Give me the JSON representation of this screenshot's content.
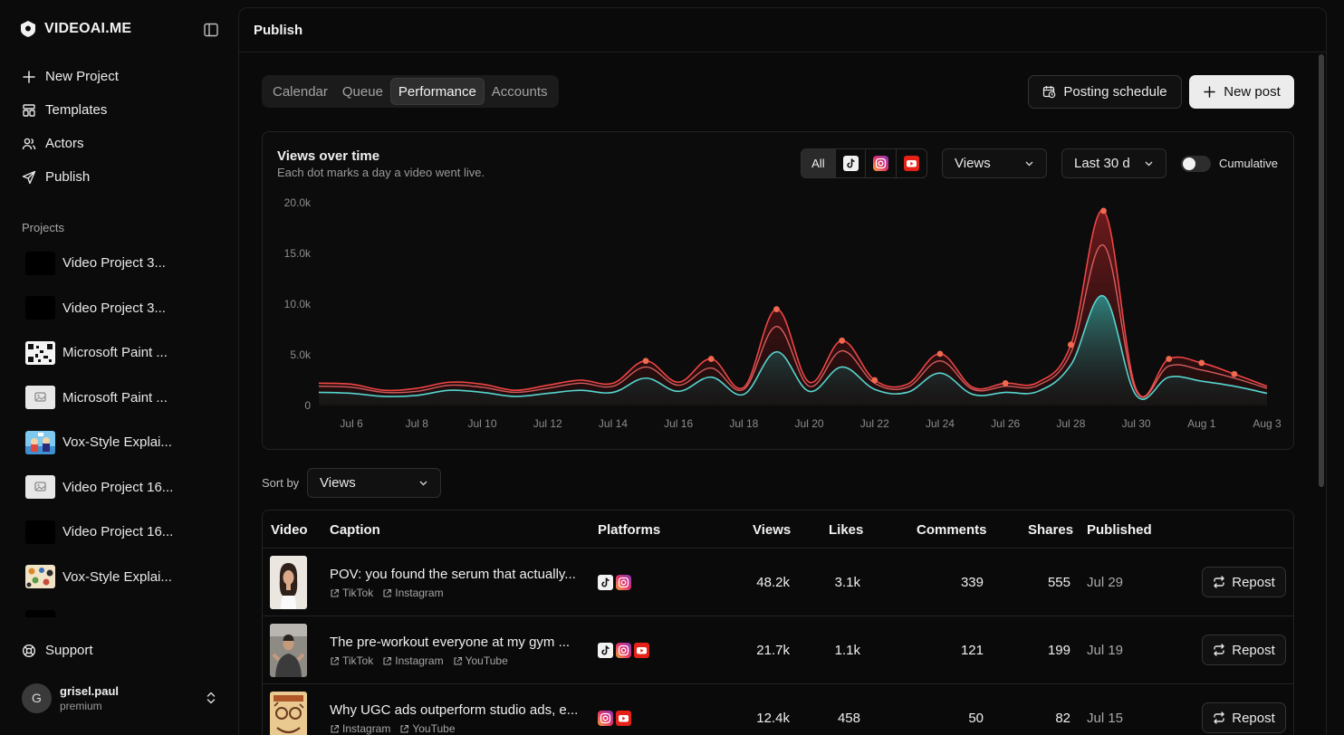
{
  "app": {
    "brand": "VIDEOAI.ME"
  },
  "nav": [
    {
      "label": "New Project",
      "icon": "plus-icon"
    },
    {
      "label": "Templates",
      "icon": "layout-icon"
    },
    {
      "label": "Actors",
      "icon": "users-icon"
    },
    {
      "label": "Publish",
      "icon": "send-icon"
    }
  ],
  "projects_label": "Projects",
  "projects": [
    {
      "label": "Video Project 3...",
      "thumb": "black"
    },
    {
      "label": "Video Project 3...",
      "thumb": "black"
    },
    {
      "label": "Microsoft Paint ...",
      "thumb": "qr"
    },
    {
      "label": "Microsoft Paint ...",
      "thumb": "placeholder"
    },
    {
      "label": "Vox-Style Explai...",
      "thumb": "cartoon"
    },
    {
      "label": "Video Project 16...",
      "thumb": "placeholder"
    },
    {
      "label": "Video Project 16...",
      "thumb": "black"
    },
    {
      "label": "Vox-Style Explai...",
      "thumb": "pattern"
    }
  ],
  "support_label": "Support",
  "user": {
    "initial": "G",
    "name": "grisel.paul",
    "plan": "premium"
  },
  "header": {
    "title": "Publish"
  },
  "tabs": [
    "Calendar",
    "Queue",
    "Performance",
    "Accounts"
  ],
  "active_tab": "Performance",
  "buttons": {
    "posting_schedule": "Posting schedule",
    "new_post": "New post"
  },
  "chart_panel": {
    "title": "Views over time",
    "subtitle": "Each dot marks a day a video went live.",
    "filter_all": "All",
    "metric": "Views",
    "range": "Last 30 d",
    "cumulative_label": "Cumulative"
  },
  "chart_data": {
    "type": "area",
    "title": "Views over time",
    "x": [
      "Jul 5",
      "Jul 6",
      "Jul 7",
      "Jul 8",
      "Jul 9",
      "Jul 10",
      "Jul 11",
      "Jul 12",
      "Jul 13",
      "Jul 14",
      "Jul 15",
      "Jul 16",
      "Jul 17",
      "Jul 18",
      "Jul 19",
      "Jul 20",
      "Jul 21",
      "Jul 22",
      "Jul 23",
      "Jul 24",
      "Jul 25",
      "Jul 26",
      "Jul 27",
      "Jul 28",
      "Jul 29",
      "Jul 30",
      "Jul 31",
      "Aug 1",
      "Aug 2",
      "Aug 3"
    ],
    "tick_labels": [
      "Jul 6",
      "Jul 8",
      "Jul 10",
      "Jul 12",
      "Jul 14",
      "Jul 16",
      "Jul 18",
      "Jul 20",
      "Jul 22",
      "Jul 24",
      "Jul 26",
      "Jul 28",
      "Jul 30",
      "Aug 1",
      "Aug 3"
    ],
    "y_ticks": [
      "0",
      "5.0k",
      "10.0k",
      "15.0k",
      "20.0k"
    ],
    "ylim": [
      0,
      20000
    ],
    "series": [
      {
        "values": [
          1300,
          1200,
          900,
          1000,
          1500,
          1300,
          900,
          1200,
          1500,
          1300,
          2700,
          1400,
          2800,
          1100,
          5300,
          1400,
          3800,
          1600,
          1300,
          3200,
          1100,
          1300,
          1400,
          4000,
          10800,
          1000,
          2800,
          2400,
          1900,
          1200
        ]
      },
      {
        "values": [
          1900,
          1800,
          1300,
          1400,
          2000,
          1800,
          1300,
          1700,
          2200,
          1900,
          3800,
          2000,
          3700,
          1600,
          7800,
          1900,
          5400,
          2200,
          1800,
          4400,
          1600,
          1900,
          2000,
          5200,
          15800,
          1400,
          3900,
          3500,
          2700,
          1700
        ]
      },
      {
        "values": [
          2200,
          2100,
          1500,
          1700,
          2300,
          2100,
          1500,
          2000,
          2500,
          2200,
          4400,
          2300,
          4600,
          1800,
          9500,
          2300,
          6400,
          2500,
          2100,
          5100,
          1800,
          2200,
          2300,
          6000,
          19200,
          1600,
          4600,
          4200,
          3100,
          1900
        ]
      }
    ],
    "launch_days": [
      "Jul 15",
      "Jul 17",
      "Jul 19",
      "Jul 21",
      "Jul 22",
      "Jul 24",
      "Jul 26",
      "Jul 28",
      "Jul 29",
      "Jul 31",
      "Aug 1",
      "Aug 2"
    ],
    "colors": {
      "teal": "#56d5cf",
      "red": "#f04444",
      "dot": "#f0694f"
    },
    "grid": false,
    "legend": "none"
  },
  "sort": {
    "label": "Sort by",
    "value": "Views"
  },
  "table": {
    "headers": {
      "video": "Video",
      "caption": "Caption",
      "platforms": "Platforms",
      "views": "Views",
      "likes": "Likes",
      "comments": "Comments",
      "shares": "Shares",
      "published": "Published"
    },
    "rows": [
      {
        "caption": "POV: you found the serum that actually...",
        "links": [
          "TikTok",
          "Instagram"
        ],
        "platforms": [
          "tiktok",
          "instagram"
        ],
        "views": "48.2k",
        "likes": "3.1k",
        "comments": "339",
        "shares": "555",
        "published": "Jul 29",
        "action": "Repost",
        "thumb": "woman"
      },
      {
        "caption": "The pre-workout everyone at my gym ...",
        "links": [
          "TikTok",
          "Instagram",
          "YouTube"
        ],
        "platforms": [
          "tiktok",
          "instagram",
          "youtube"
        ],
        "views": "21.7k",
        "likes": "1.1k",
        "comments": "121",
        "shares": "199",
        "published": "Jul 19",
        "action": "Repost",
        "thumb": "man"
      },
      {
        "caption": "Why UGC ads outperform studio ads, e...",
        "links": [
          "Instagram",
          "YouTube"
        ],
        "platforms": [
          "instagram",
          "youtube"
        ],
        "views": "12.4k",
        "likes": "458",
        "comments": "50",
        "shares": "82",
        "published": "Jul 15",
        "action": "Repost",
        "thumb": "poster"
      }
    ]
  }
}
